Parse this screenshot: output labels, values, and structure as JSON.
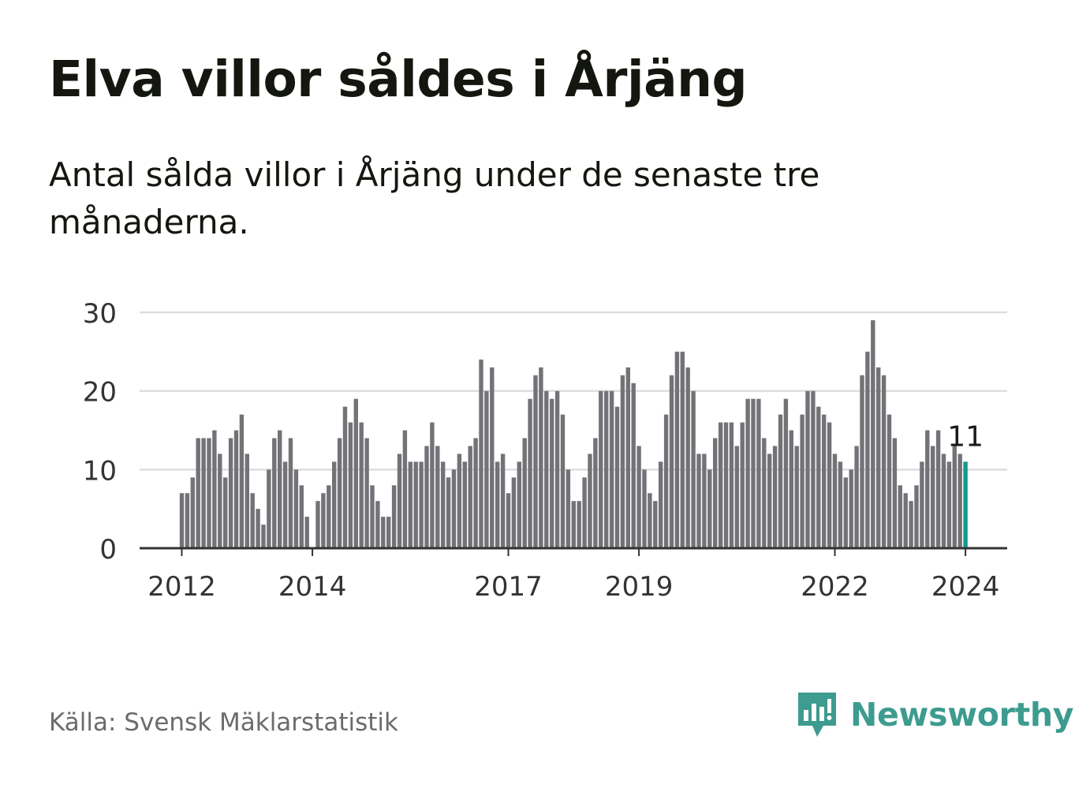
{
  "header": {
    "title": "Elva villor såldes i Årjäng",
    "subtitle": "Antal sålda villor i Årjäng under de senaste tre månaderna."
  },
  "footer": {
    "source": "Källa: Svensk Mäklarstatistik",
    "brand": "Newsworthy"
  },
  "colors": {
    "bar": "#737277",
    "highlight": "#119a8d",
    "grid": "#dddddd",
    "axis": "#333333",
    "text": "#333333",
    "brand": "#3d9b8f"
  },
  "icons": {
    "logo": "chart-speech-bubble-icon"
  },
  "chart_data": {
    "type": "bar",
    "title": "Elva villor såldes i Årjäng",
    "xlabel": "",
    "ylabel": "",
    "ylim": [
      0,
      30
    ],
    "yticks": [
      0,
      10,
      20,
      30
    ],
    "xticks": [
      {
        "index": 0,
        "label": "2012"
      },
      {
        "index": 24,
        "label": "2014"
      },
      {
        "index": 60,
        "label": "2017"
      },
      {
        "index": 84,
        "label": "2019"
      },
      {
        "index": 120,
        "label": "2022"
      },
      {
        "index": 144,
        "label": "2024"
      }
    ],
    "start": "2012-01",
    "values": [
      7,
      7,
      9,
      14,
      14,
      14,
      15,
      12,
      9,
      14,
      15,
      17,
      12,
      7,
      5,
      3,
      10,
      14,
      15,
      11,
      14,
      10,
      8,
      4,
      0,
      6,
      7,
      8,
      11,
      14,
      18,
      16,
      19,
      16,
      14,
      8,
      6,
      4,
      4,
      8,
      12,
      15,
      11,
      11,
      11,
      13,
      16,
      13,
      11,
      9,
      10,
      12,
      11,
      13,
      14,
      24,
      20,
      23,
      11,
      12,
      7,
      9,
      11,
      14,
      19,
      22,
      23,
      20,
      19,
      20,
      17,
      10,
      6,
      6,
      9,
      12,
      14,
      20,
      20,
      20,
      18,
      22,
      23,
      21,
      13,
      10,
      7,
      6,
      11,
      17,
      22,
      25,
      25,
      23,
      20,
      12,
      12,
      10,
      14,
      16,
      16,
      16,
      13,
      16,
      19,
      19,
      19,
      14,
      12,
      13,
      17,
      19,
      15,
      13,
      17,
      20,
      20,
      18,
      17,
      16,
      12,
      11,
      9,
      10,
      13,
      22,
      25,
      29,
      23,
      22,
      17,
      14,
      8,
      7,
      6,
      8,
      11,
      15,
      13,
      15,
      12,
      11,
      13,
      12,
      11
    ],
    "highlight_index": 144,
    "highlight_label": "11"
  }
}
